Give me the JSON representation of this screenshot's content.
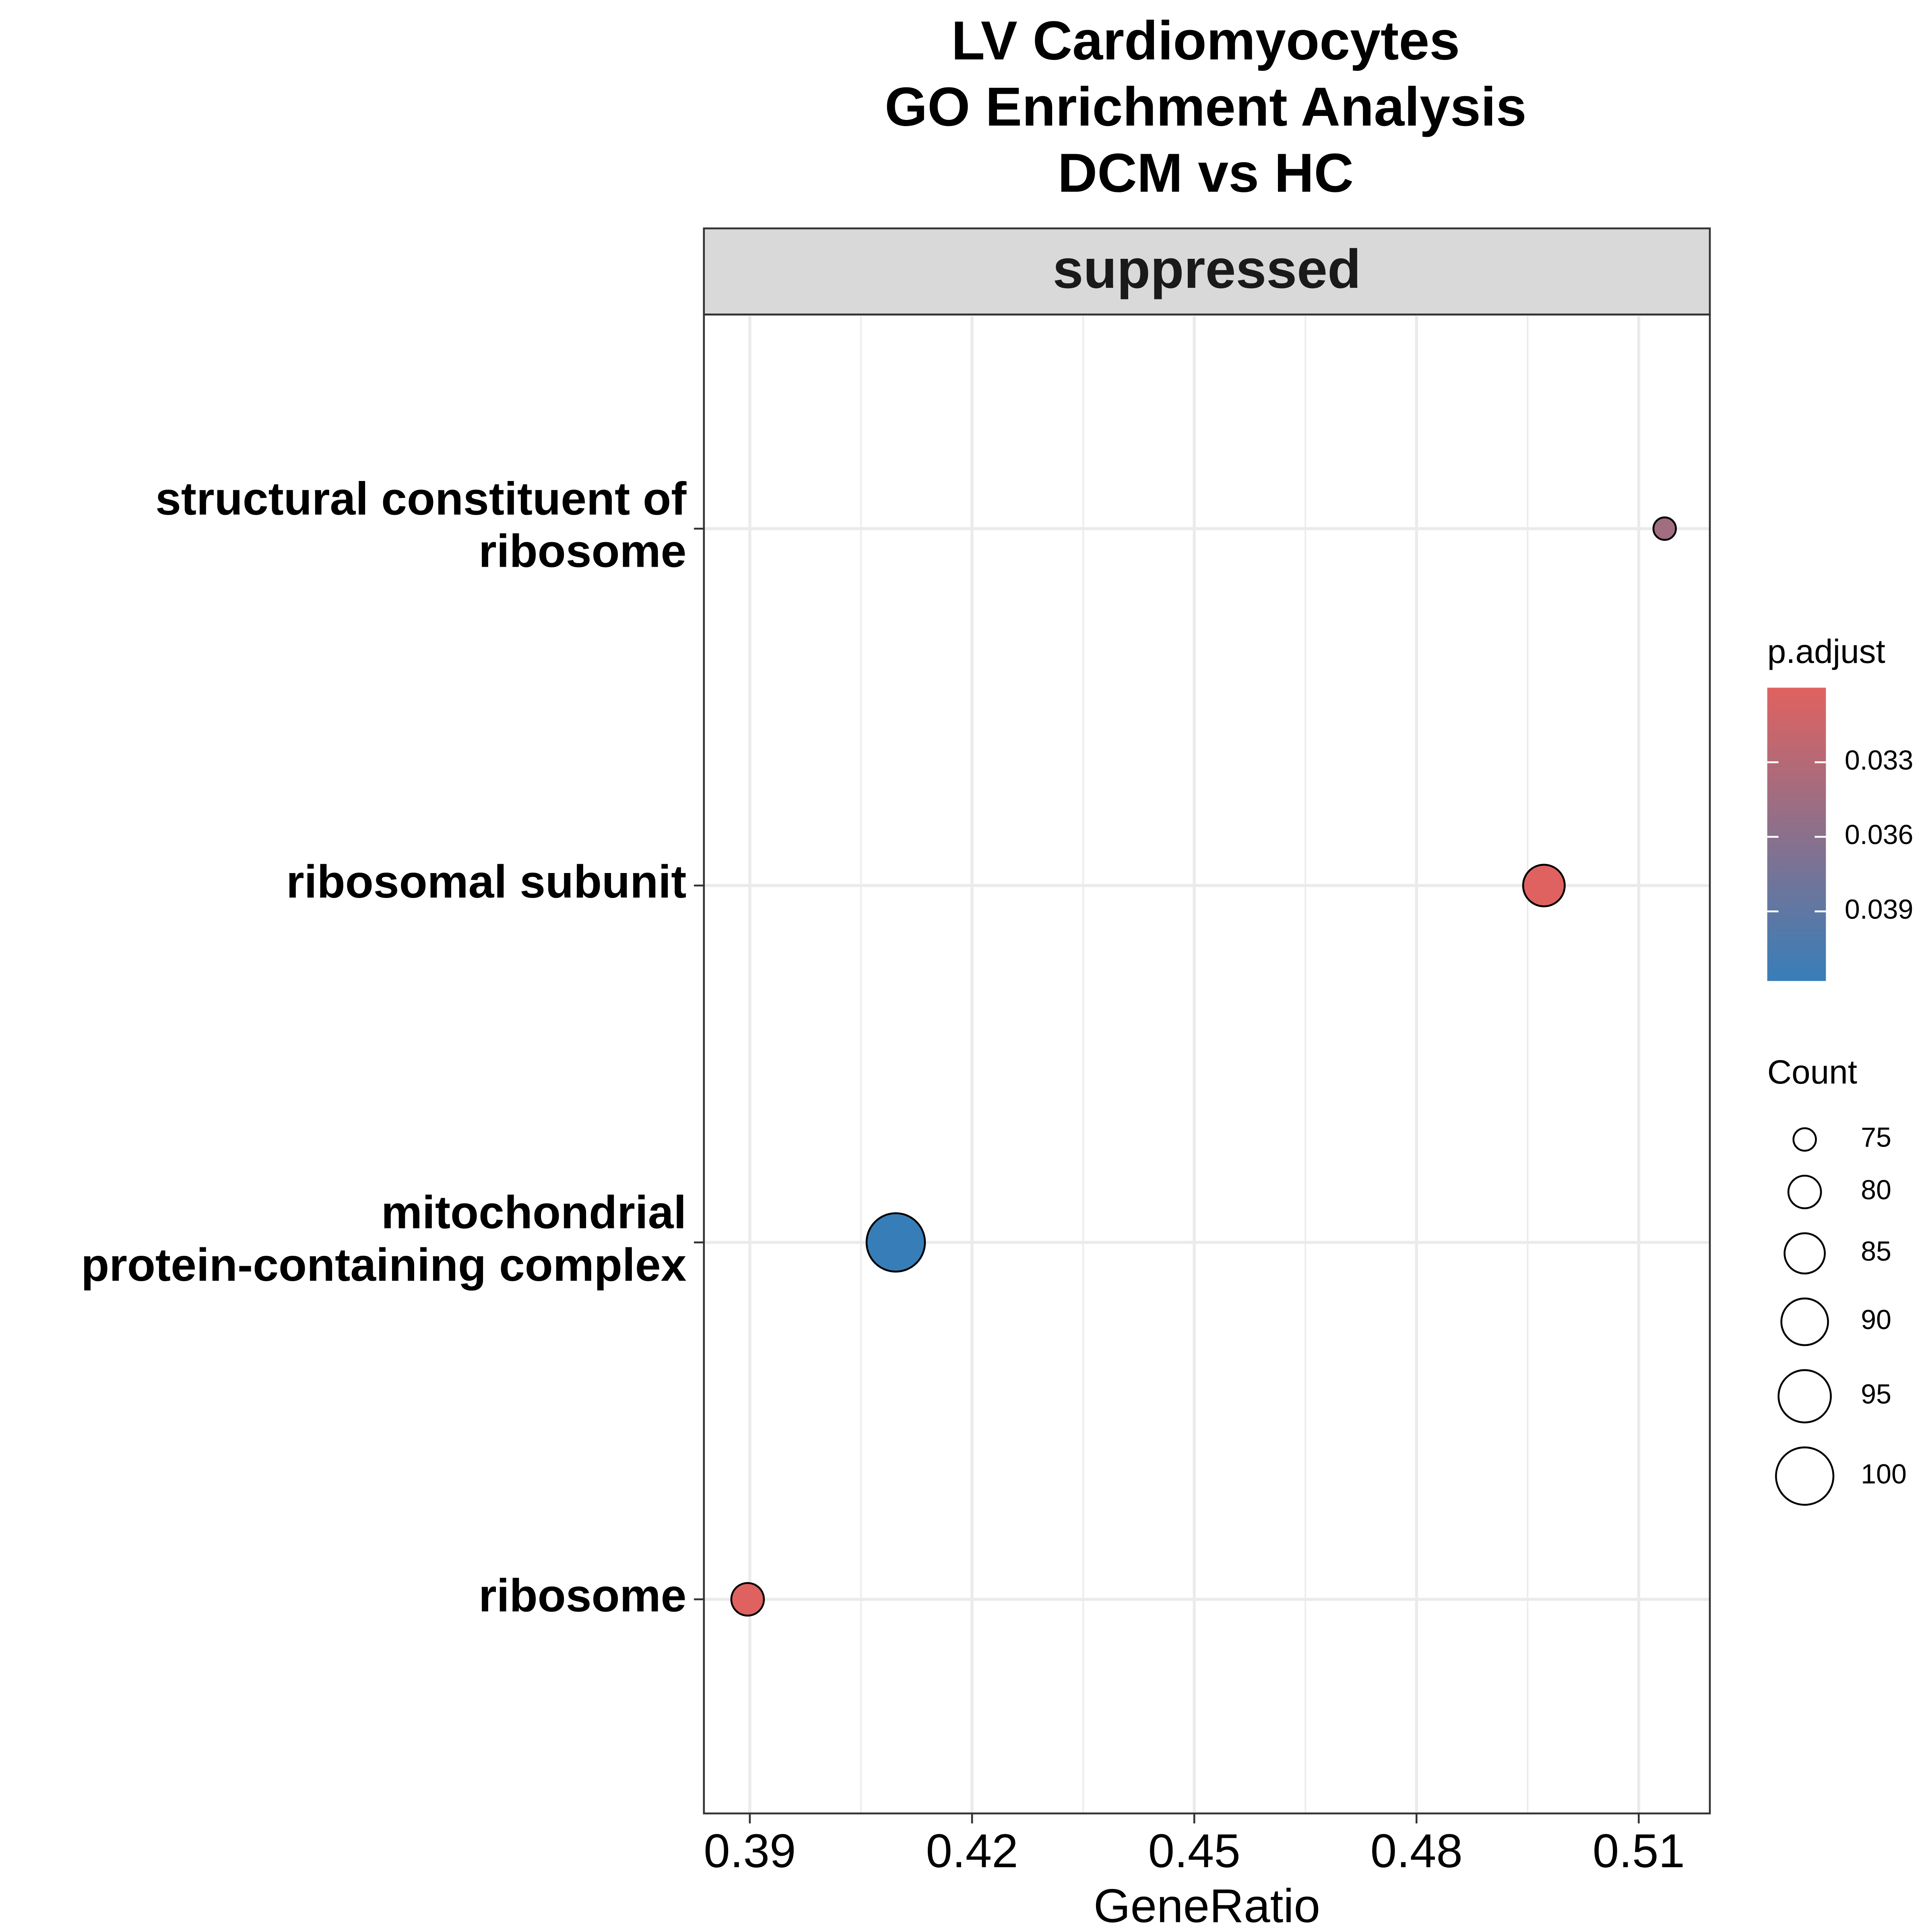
{
  "chart_data": {
    "type": "dot",
    "title": [
      "LV Cardiomyocytes",
      "GO Enrichment Analysis",
      "DCM vs HC"
    ],
    "facet": "suppressed",
    "x_label": "GeneRatio",
    "categories": [
      "structural constituent of\nribosome",
      "ribosomal subunit",
      "mitochondrial\nprotein-containing complex",
      "ribosome"
    ],
    "gene_ratio": [
      0.5135,
      0.4972,
      0.4097,
      0.3897
    ],
    "count": [
      75,
      86,
      101,
      80
    ],
    "p_adjust": [
      0.0345,
      0.0301,
      0.0418,
      0.0301
    ],
    "xlim": [
      0.3838,
      0.5196
    ],
    "xticks": [
      0.39,
      0.42,
      0.45,
      0.48,
      0.51
    ],
    "grid": true,
    "color_legend": {
      "title": "p.adjust",
      "lim": [
        0.03,
        0.0418
      ],
      "ticks": [
        0.033,
        0.036,
        0.039
      ],
      "low_color": "#e0625f",
      "high_color": "#377eb8"
    },
    "size_legend": {
      "title": "Count",
      "ticks": [
        75,
        80,
        85,
        90,
        95,
        100
      ]
    }
  }
}
